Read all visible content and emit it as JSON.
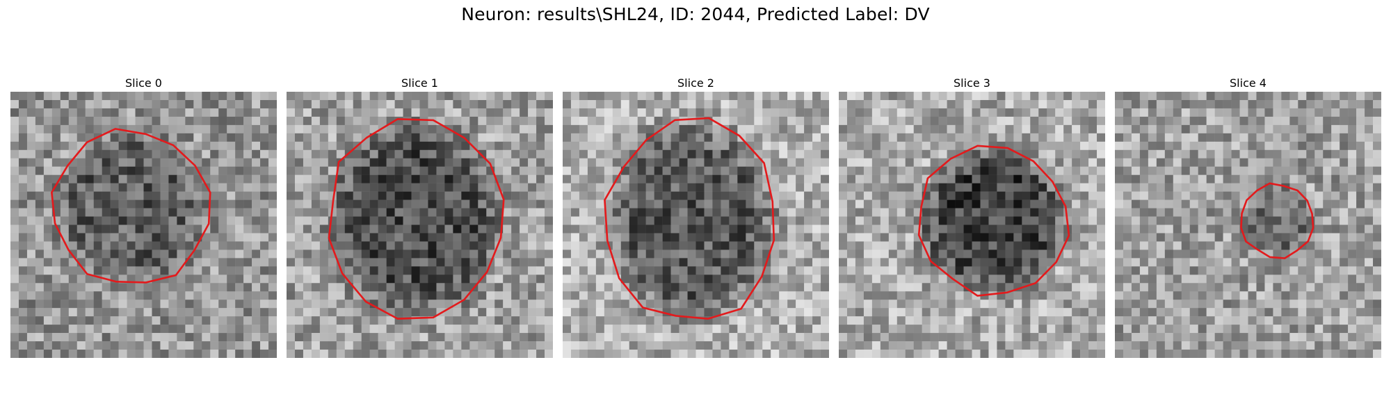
{
  "figure": {
    "title": "Neuron: results\\SHL24, ID: 2044, Predicted Label: DV"
  },
  "slices": [
    {
      "label": "Slice 0",
      "seed": 11,
      "base": 150,
      "blob_darkness": 55,
      "outline_color": "#e31a1c"
    },
    {
      "label": "Slice 1",
      "seed": 23,
      "base": 160,
      "blob_darkness": 80,
      "outline_color": "#e31a1c"
    },
    {
      "label": "Slice 2",
      "seed": 37,
      "base": 175,
      "blob_darkness": 85,
      "outline_color": "#e31a1c"
    },
    {
      "label": "Slice 3",
      "seed": 41,
      "base": 170,
      "blob_darkness": 105,
      "outline_color": "#e31a1c"
    },
    {
      "label": "Slice 4",
      "seed": 53,
      "base": 160,
      "blob_darkness": 45,
      "outline_color": "#e31a1c"
    }
  ]
}
